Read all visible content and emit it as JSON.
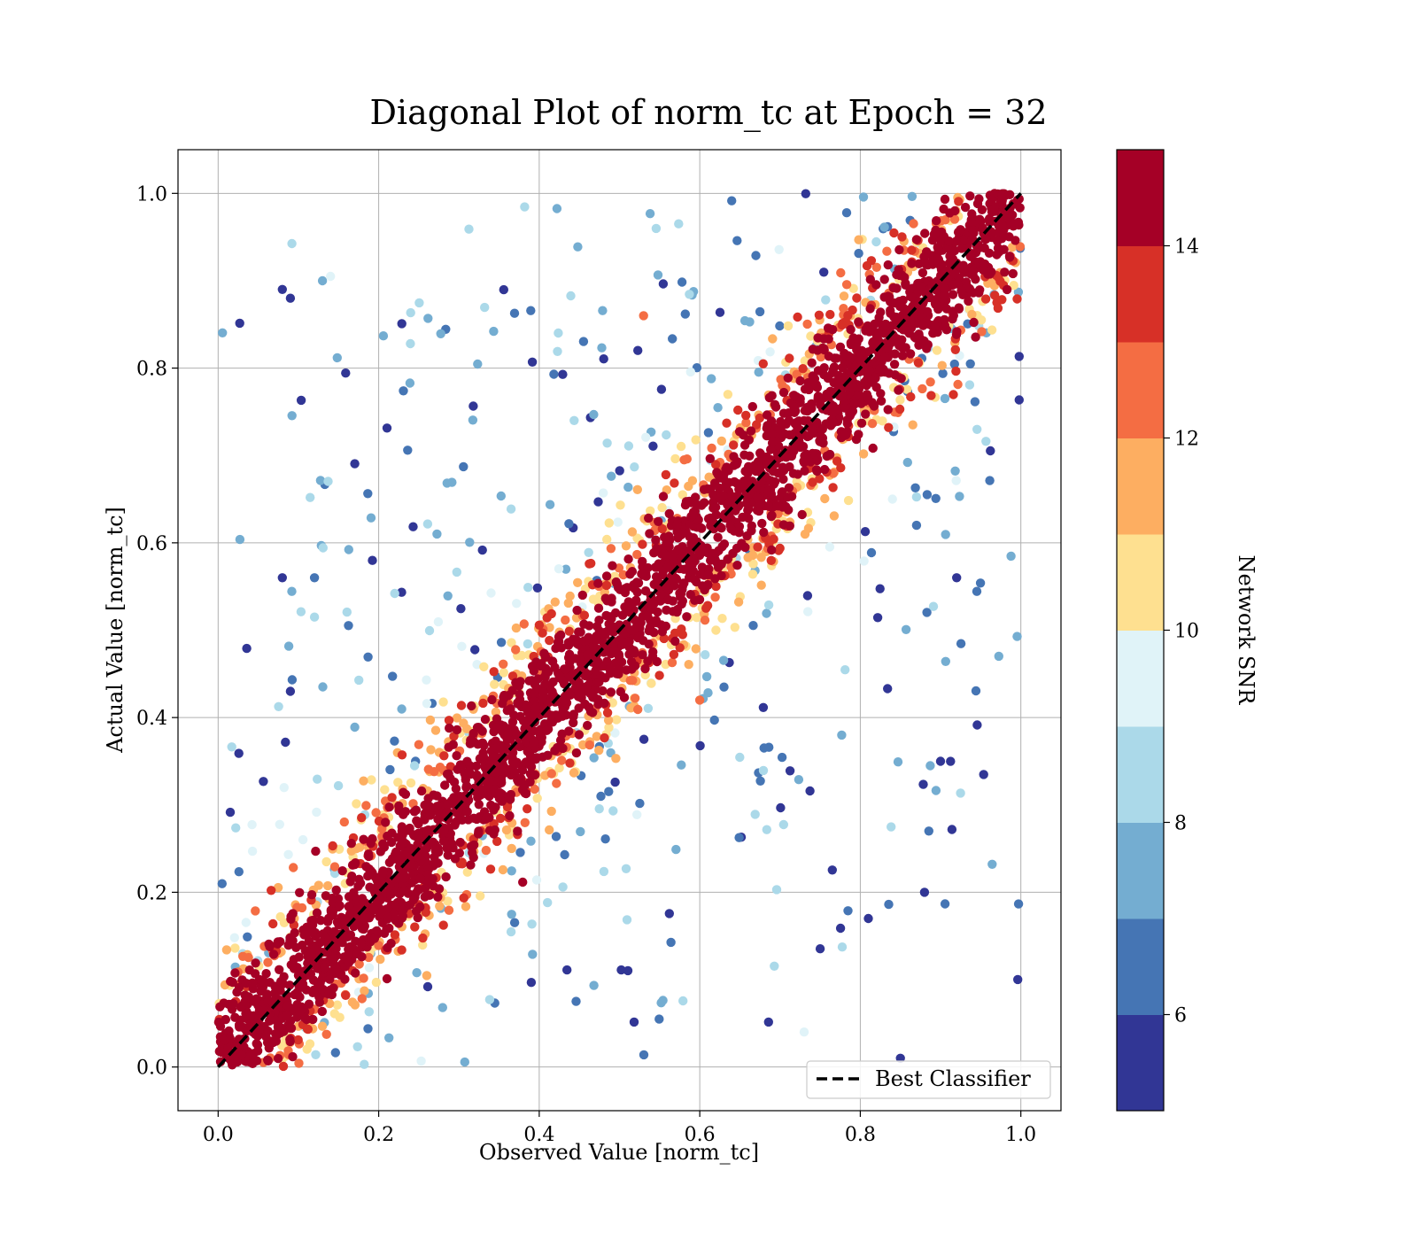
{
  "chart_data": {
    "type": "scatter",
    "title": "Diagonal Plot of norm_tc at Epoch = 32",
    "xlabel": "Observed Value [norm_tc]",
    "ylabel": "Actual Value [norm_tc]",
    "xlim": [
      -0.05,
      1.05
    ],
    "ylim": [
      -0.05,
      1.05
    ],
    "x_ticks": [
      "0.0",
      "0.2",
      "0.4",
      "0.6",
      "0.8",
      "1.0"
    ],
    "y_ticks": [
      "0.0",
      "0.2",
      "0.4",
      "0.6",
      "0.8",
      "1.0"
    ],
    "grid": true,
    "legend": {
      "position": "lower-right",
      "entries": [
        {
          "label": "Best Classifier",
          "style": "dashed",
          "color": "#000000"
        }
      ]
    },
    "reference_line": {
      "label": "Best Classifier",
      "x": [
        0,
        1
      ],
      "y": [
        0,
        1
      ]
    },
    "colorbar": {
      "label": "Network SNR",
      "range": [
        5,
        15
      ],
      "tick_labels": [
        "6",
        "8",
        "10",
        "12",
        "14"
      ],
      "tick_values": [
        6,
        8,
        10,
        12,
        14
      ],
      "colors": [
        "#313695",
        "#4575b4",
        "#74add1",
        "#abd9e9",
        "#e0f3f8",
        "#fee090",
        "#fdae61",
        "#f46d43",
        "#d73027",
        "#a50026"
      ]
    },
    "scatter_description": {
      "n_points_approx": 4000,
      "band": "High-SNR points (≥14) lie tightly along y = x; low-SNR points (5–9) scatter widely, mostly in the upper-left triangle near x 0.2–0.9 and the lower-right triangle near y 0–0.2",
      "sample_points": [
        {
          "x": 0.08,
          "y": 0.89,
          "snr": 5.5
        },
        {
          "x": 0.09,
          "y": 0.88,
          "snr": 5.5
        },
        {
          "x": 0.13,
          "y": 0.9,
          "snr": 7.5
        },
        {
          "x": 0.14,
          "y": 0.905,
          "snr": 9.0
        },
        {
          "x": 0.08,
          "y": 0.56,
          "snr": 5.5
        },
        {
          "x": 0.12,
          "y": 0.56,
          "snr": 6.0
        },
        {
          "x": 0.09,
          "y": 0.43,
          "snr": 5.5
        },
        {
          "x": 0.12,
          "y": 0.515,
          "snr": 8.5
        },
        {
          "x": 0.92,
          "y": 0.56,
          "snr": 5.5
        },
        {
          "x": 0.9,
          "y": 0.35,
          "snr": 5.5
        },
        {
          "x": 0.88,
          "y": 0.2,
          "snr": 5.5
        },
        {
          "x": 0.81,
          "y": 0.17,
          "snr": 5.5
        },
        {
          "x": 0.85,
          "y": 0.01,
          "snr": 5.5
        },
        {
          "x": 0.73,
          "y": 0.04,
          "snr": 9.5
        },
        {
          "x": 0.87,
          "y": 0.62,
          "snr": 6.5
        },
        {
          "x": 0.84,
          "y": 0.65,
          "snr": 9.5
        },
        {
          "x": 0.53,
          "y": 0.86,
          "snr": 12.5
        },
        {
          "x": 0.6,
          "y": 0.42,
          "snr": 12.5
        }
      ]
    }
  }
}
